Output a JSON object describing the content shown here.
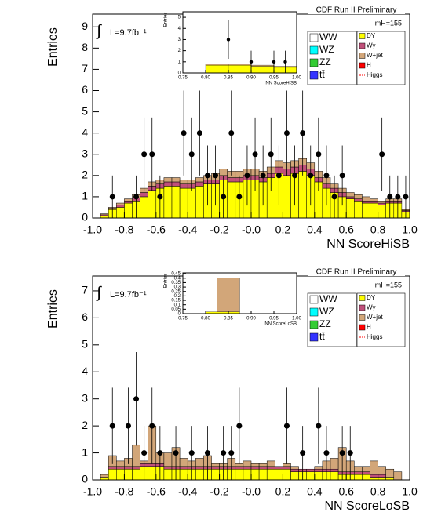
{
  "chart_data": [
    {
      "type": "histogram",
      "title": "CDF Run II Preliminary",
      "mass_label": "mH=155",
      "luminosity": "L=9.7fb⁻¹",
      "x_label": "NN ScoreHiSB",
      "y_label": "Entries",
      "xlim": [
        -1.0,
        1.0
      ],
      "ylim": [
        0,
        9.6
      ],
      "xticks": [
        {
          "value": -1.0,
          "label": "-1.0"
        },
        -0.8,
        -0.6,
        -0.4,
        -0.2,
        {
          "value": 0,
          "label": "-0.0"
        },
        0.2,
        0.4,
        0.6,
        0.8,
        {
          "value": 1.0,
          "label": "1.0"
        }
      ],
      "yticks": [
        0,
        1,
        2,
        3,
        4,
        5,
        6,
        7,
        8,
        9
      ],
      "bins": [
        -1.0,
        -0.95,
        -0.9,
        -0.85,
        -0.8,
        -0.75,
        -0.7,
        -0.65,
        -0.6,
        -0.55,
        -0.5,
        -0.45,
        -0.4,
        -0.35,
        -0.3,
        -0.25,
        -0.2,
        -0.15,
        -0.1,
        -0.05,
        0,
        0.05,
        0.1,
        0.15,
        0.2,
        0.25,
        0.3,
        0.35,
        0.4,
        0.45,
        0.5,
        0.55,
        0.6,
        0.65,
        0.7,
        0.75,
        0.8,
        0.85,
        0.9,
        0.95,
        1.0
      ],
      "series": [
        {
          "name": "DY",
          "color": "#ffff00",
          "values": [
            0,
            0.1,
            0.4,
            0.5,
            0.7,
            0.8,
            1.0,
            1.3,
            1.4,
            1.5,
            1.5,
            1.4,
            1.4,
            1.5,
            1.6,
            1.6,
            1.8,
            1.7,
            1.7,
            1.8,
            1.8,
            1.7,
            1.9,
            2.1,
            2.0,
            2.1,
            2.2,
            2.0,
            1.7,
            1.4,
            1.2,
            1.0,
            0.9,
            0.8,
            0.7,
            0.7,
            0.6,
            0.7,
            0.7,
            0.3
          ]
        },
        {
          "name": "Wγ",
          "color": "#c0507a",
          "values": [
            0,
            0.05,
            0.05,
            0.1,
            0.1,
            0.15,
            0.2,
            0.2,
            0.2,
            0.2,
            0.2,
            0.2,
            0.2,
            0.2,
            0.2,
            0.2,
            0.2,
            0.2,
            0.2,
            0.2,
            0.2,
            0.2,
            0.2,
            0.3,
            0.3,
            0.3,
            0.3,
            0.3,
            0.2,
            0.2,
            0.2,
            0.2,
            0.1,
            0.1,
            0.1,
            0.1,
            0.1,
            0.1,
            0.1,
            0.05
          ]
        },
        {
          "name": "W+jet",
          "color": "#d2a679",
          "values": [
            0,
            0.05,
            0.05,
            0.1,
            0.1,
            0.15,
            0.2,
            0.2,
            0.2,
            0.2,
            0.2,
            0.2,
            0.2,
            0.2,
            0.2,
            0.3,
            0.3,
            0.3,
            0.3,
            0.3,
            0.3,
            0.3,
            0.3,
            0.3,
            0.3,
            0.3,
            0.3,
            0.3,
            0.3,
            0.3,
            0.2,
            0.2,
            0.2,
            0.2,
            0.2,
            0.1,
            0.1,
            0.1,
            0.1,
            0.05
          ]
        }
      ],
      "data_points": {
        "x": [
          -0.875,
          -0.725,
          -0.675,
          -0.625,
          -0.575,
          -0.425,
          -0.375,
          -0.325,
          -0.275,
          -0.225,
          -0.175,
          -0.125,
          -0.075,
          -0.025,
          0.025,
          0.075,
          0.125,
          0.175,
          0.225,
          0.275,
          0.325,
          0.375,
          0.425,
          0.475,
          0.525,
          0.575,
          0.825,
          0.875,
          0.925,
          0.975
        ],
        "values": [
          1,
          1,
          3,
          3,
          1,
          4,
          3,
          4,
          2,
          2,
          1,
          4,
          1,
          2,
          3,
          2,
          3,
          2,
          4,
          2,
          4,
          2,
          3,
          2,
          1,
          2,
          3,
          1,
          1,
          1
        ]
      },
      "legend": [
        {
          "name": "WW",
          "color": "#ffffff"
        },
        {
          "name": "WZ",
          "color": "#00ffff"
        },
        {
          "name": "ZZ",
          "color": "#33cc33"
        },
        {
          "name": "tt̄",
          "color": "#3333ff"
        },
        {
          "name": "DY",
          "color": "#ffff00"
        },
        {
          "name": "Wγ",
          "color": "#c0507a"
        },
        {
          "name": "W+jet",
          "color": "#d2a679"
        },
        {
          "name": "H",
          "color": "#ff0000"
        },
        {
          "name": "Higgs",
          "color": "#ff0000",
          "line": true
        }
      ]
    },
    {
      "type": "histogram",
      "x_label": "NN ScoreHiSB",
      "y_label": "Entries",
      "xlim": [
        0.75,
        1.0
      ],
      "ylim": [
        0,
        5.5
      ],
      "xticks": [
        0.75,
        {
          "value": 0.8,
          "label": "0.80"
        },
        0.85,
        {
          "value": 0.9,
          "label": "0.90"
        },
        0.95,
        {
          "value": 1.0,
          "label": "1.00"
        }
      ],
      "yticks": [
        0,
        1,
        2,
        3,
        4,
        5
      ],
      "bins": [
        0.75,
        0.8,
        0.85,
        0.9,
        0.95,
        1.0
      ],
      "series": [
        {
          "name": "DY",
          "color": "#ffff00",
          "values": [
            0,
            0.7,
            0.7,
            0.6,
            0.5
          ]
        },
        {
          "name": "W+jet",
          "color": "#d2a679",
          "values": [
            0,
            0.1,
            0.1,
            0.1,
            0.1
          ]
        }
      ],
      "data_points": {
        "x": [
          0.85,
          0.9,
          0.95,
          0.975
        ],
        "values": [
          3,
          1,
          1,
          1
        ]
      }
    },
    {
      "type": "histogram",
      "title": "CDF Run II Preliminary",
      "mass_label": "mH=155",
      "luminosity": "L=9.7fb⁻¹",
      "x_label": "NN ScoreLoSB",
      "y_label": "Entries",
      "xlim": [
        -1.0,
        1.0
      ],
      "ylim": [
        0,
        7.55
      ],
      "xticks": [
        {
          "value": -1.0,
          "label": "-1.0"
        },
        -0.8,
        -0.6,
        -0.4,
        -0.2,
        {
          "value": 0,
          "label": "-0.0"
        },
        0.2,
        0.4,
        0.6,
        0.8,
        {
          "value": 1.0,
          "label": "1.0"
        }
      ],
      "yticks": [
        0,
        1,
        2,
        3,
        4,
        5,
        6,
        7
      ],
      "bins": [
        -1.0,
        -0.95,
        -0.9,
        -0.85,
        -0.8,
        -0.75,
        -0.7,
        -0.65,
        -0.6,
        -0.55,
        -0.5,
        -0.45,
        -0.4,
        -0.35,
        -0.3,
        -0.25,
        -0.2,
        -0.15,
        -0.1,
        -0.05,
        0,
        0.05,
        0.1,
        0.15,
        0.2,
        0.25,
        0.3,
        0.35,
        0.4,
        0.45,
        0.5,
        0.55,
        0.6,
        0.65,
        0.7,
        0.75,
        0.8,
        0.85,
        0.9,
        0.95,
        1.0
      ],
      "series": [
        {
          "name": "DY",
          "color": "#ffff00",
          "values": [
            0,
            0.1,
            0.4,
            0.4,
            0.4,
            0.4,
            0.5,
            0.5,
            0.5,
            0.4,
            0.4,
            0.4,
            0.4,
            0.4,
            0.4,
            0.4,
            0.4,
            0.4,
            0.4,
            0.4,
            0.4,
            0.4,
            0.4,
            0.4,
            0.4,
            0.3,
            0.3,
            0.3,
            0.3,
            0.3,
            0.3,
            0.2,
            0.2,
            0.2,
            0.2,
            0.1,
            0.1,
            0.1,
            0,
            0
          ]
        },
        {
          "name": "Wγ",
          "color": "#c0507a",
          "values": [
            0,
            0,
            0.1,
            0.1,
            0.1,
            0.1,
            0.1,
            0.1,
            0.1,
            0.1,
            0.1,
            0.1,
            0.1,
            0.1,
            0.1,
            0.1,
            0.1,
            0.1,
            0.1,
            0.1,
            0.1,
            0.1,
            0.1,
            0.1,
            0.1,
            0.1,
            0.1,
            0.1,
            0.1,
            0.1,
            0.1,
            0.1,
            0.1,
            0.1,
            0.1,
            0.1,
            0.1,
            0,
            0,
            0
          ]
        },
        {
          "name": "W+jet",
          "color": "#d2a679",
          "values": [
            0,
            0.1,
            0.4,
            0.2,
            0.3,
            0.8,
            0.1,
            1.4,
            0.4,
            0.5,
            0.7,
            0.3,
            0.2,
            0.3,
            0.4,
            0.1,
            0.1,
            0.3,
            0.1,
            0.2,
            0.1,
            0.1,
            0.2,
            0,
            0.1,
            0.1,
            0,
            0,
            0.1,
            0.3,
            0.4,
            0.9,
            0.4,
            0.2,
            0.2,
            0.5,
            0.3,
            0.3,
            0.3,
            0
          ]
        }
      ],
      "data_points": {
        "x": [
          -0.875,
          -0.775,
          -0.725,
          -0.675,
          -0.625,
          -0.575,
          -0.475,
          -0.375,
          -0.275,
          -0.175,
          -0.125,
          -0.075,
          0.225,
          0.325,
          0.425,
          0.475,
          0.575,
          0.625
        ],
        "values": [
          2,
          2,
          3,
          1,
          2,
          1,
          1,
          1,
          1,
          1,
          1,
          2,
          2,
          1,
          2,
          1,
          1,
          1
        ]
      },
      "legend": [
        {
          "name": "WW",
          "color": "#ffffff"
        },
        {
          "name": "WZ",
          "color": "#00ffff"
        },
        {
          "name": "ZZ",
          "color": "#33cc33"
        },
        {
          "name": "tt̄",
          "color": "#3333ff"
        },
        {
          "name": "DY",
          "color": "#ffff00"
        },
        {
          "name": "Wγ",
          "color": "#c0507a"
        },
        {
          "name": "W+jet",
          "color": "#d2a679"
        },
        {
          "name": "H",
          "color": "#ff0000"
        },
        {
          "name": "Higgs",
          "color": "#ff0000",
          "line": true
        }
      ]
    },
    {
      "type": "histogram",
      "x_label": "NN ScoreLoSB",
      "y_label": "Entries",
      "xlim": [
        0.75,
        1.0
      ],
      "ylim": [
        0,
        0.46
      ],
      "xticks": [
        0.75,
        {
          "value": 0.8,
          "label": "0.80"
        },
        0.85,
        {
          "value": 0.9,
          "label": "0.90"
        },
        0.95,
        {
          "value": 1.0,
          "label": "1.00"
        }
      ],
      "yticks": [
        0,
        0.05,
        0.1,
        0.15,
        0.2,
        0.25,
        0.3,
        0.35,
        0.4,
        0.45
      ],
      "bins": [
        0.75,
        0.8,
        0.825,
        0.875,
        0.9,
        1.0
      ],
      "series": [
        {
          "name": "DY",
          "color": "#ffff00",
          "values": [
            0,
            0.02,
            0.02,
            0,
            0
          ]
        },
        {
          "name": "W+jet",
          "color": "#d2a679",
          "values": [
            0,
            0,
            0.38,
            0,
            0
          ]
        }
      ]
    }
  ]
}
